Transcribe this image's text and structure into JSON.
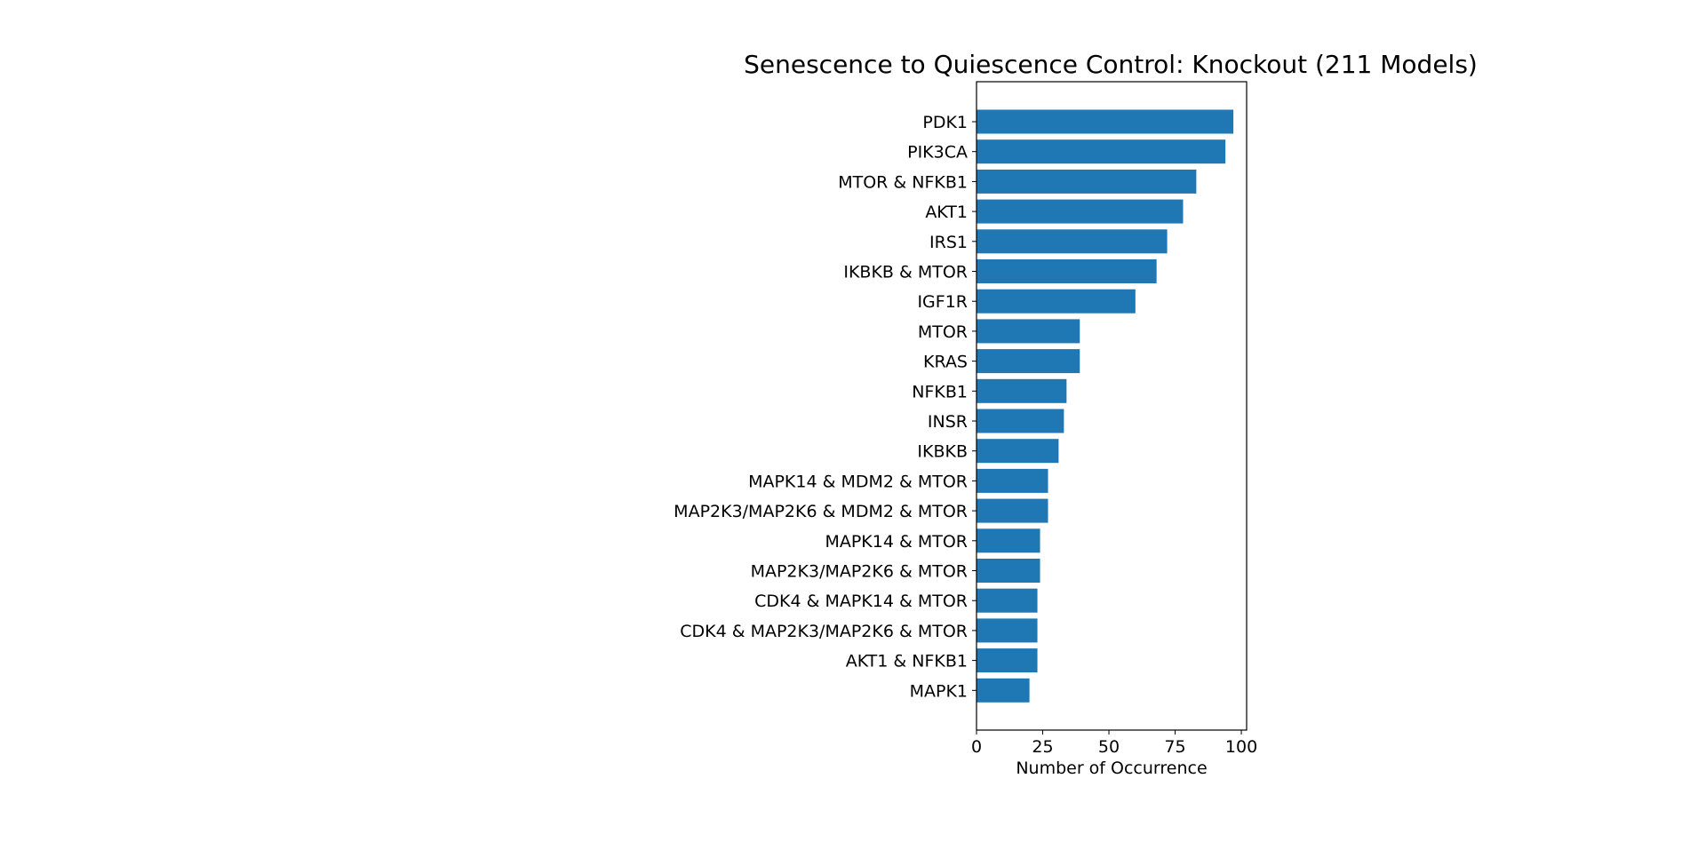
{
  "chart_data": {
    "type": "bar",
    "orientation": "horizontal",
    "title": "Senescence to Quiescence Control: Knockout (211 Models)",
    "xlabel": "Number of Occurrence",
    "ylabel": "",
    "xlim": [
      0,
      102
    ],
    "xticks": [
      0,
      25,
      50,
      75,
      100
    ],
    "grid": false,
    "bar_color": "#1f77b4",
    "categories": [
      "PDK1",
      "PIK3CA",
      "MTOR & NFKB1",
      "AKT1",
      "IRS1",
      "IKBKB & MTOR",
      "IGF1R",
      "MTOR",
      "KRAS",
      "NFKB1",
      "INSR",
      "IKBKB",
      "MAPK14 & MDM2 & MTOR",
      "MAP2K3/MAP2K6 & MDM2 & MTOR",
      "MAPK14 & MTOR",
      "MAP2K3/MAP2K6 & MTOR",
      "CDK4 & MAPK14 & MTOR",
      "CDK4 & MAP2K3/MAP2K6 & MTOR",
      "AKT1 & NFKB1",
      "MAPK1"
    ],
    "values": [
      97,
      94,
      83,
      78,
      72,
      68,
      60,
      39,
      39,
      34,
      33,
      31,
      27,
      27,
      24,
      24,
      23,
      23,
      23,
      20
    ]
  }
}
